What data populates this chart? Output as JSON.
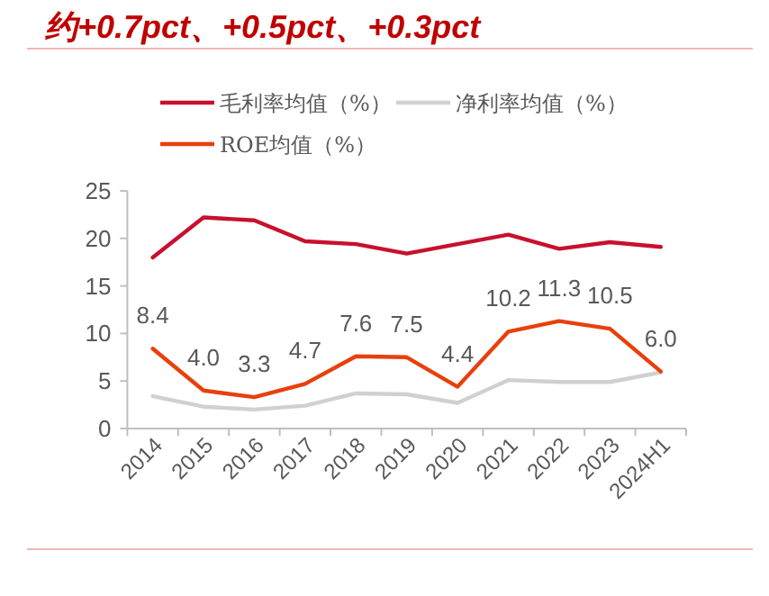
{
  "chart_data": {
    "type": "line",
    "title": "约+0.7pct、+0.5pct、+0.3pct",
    "categories": [
      "2014",
      "2015",
      "2016",
      "2017",
      "2018",
      "2019",
      "2020",
      "2021",
      "2022",
      "2023",
      "2024H1"
    ],
    "series": [
      {
        "name": "毛利率均值（%）",
        "color": "#c8102e",
        "values": [
          18.0,
          22.2,
          21.9,
          19.7,
          19.4,
          18.4,
          19.4,
          20.4,
          18.9,
          19.6,
          19.1
        ]
      },
      {
        "name": "净利率均值（%）",
        "color": "#d0d0d0",
        "values": [
          3.4,
          2.3,
          2.0,
          2.4,
          3.7,
          3.6,
          2.7,
          5.1,
          4.9,
          4.9,
          5.9
        ]
      },
      {
        "name": "ROE均值（%）",
        "color": "#e8400c",
        "values": [
          8.4,
          4.0,
          3.3,
          4.7,
          7.6,
          7.5,
          4.4,
          10.2,
          11.3,
          10.5,
          6.0
        ],
        "value_labels": [
          "8.4",
          "4.0",
          "3.3",
          "4.7",
          "7.6",
          "7.5",
          "4.4",
          "10.2",
          "11.3",
          "10.5",
          "6.0"
        ]
      }
    ],
    "ylim": [
      0,
      25
    ],
    "yticks": [
      0,
      5,
      10,
      15,
      20,
      25
    ],
    "grid": false,
    "legend": "top",
    "marker": "none",
    "line_style": "solid"
  }
}
